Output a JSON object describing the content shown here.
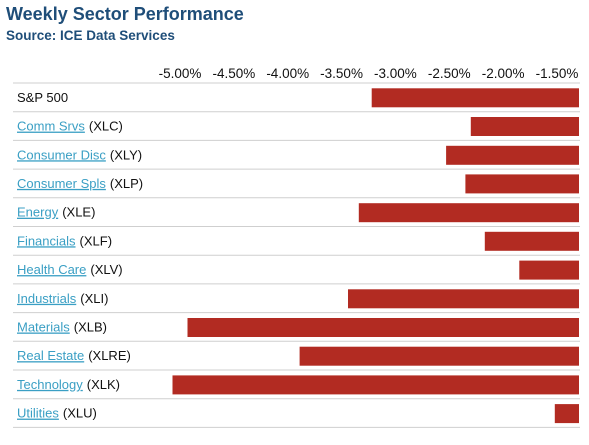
{
  "chart_data": {
    "type": "bar",
    "orientation": "horizontal",
    "title": "Weekly Sector Performance",
    "subtitle": "Source: ICE Data Services",
    "xlim": [
      -5.3,
      -1.35
    ],
    "x_ticks": [
      -5.0,
      -4.5,
      -4.0,
      -3.5,
      -3.0,
      -2.5,
      -2.0,
      -1.5
    ],
    "x_tick_labels": [
      "-5.00%",
      "-4.50%",
      "-4.00%",
      "-3.50%",
      "-3.00%",
      "-2.50%",
      "-2.00%",
      "-1.50%"
    ],
    "axis_position": "top",
    "bar_color": "#b22b22",
    "link_color": "#3a9fc4",
    "title_color": "#1f4e79",
    "rows": [
      {
        "label": "S&P 500",
        "ticker": "",
        "linked": false,
        "value": -3.22
      },
      {
        "label": "Comm Srvs",
        "ticker": "(XLC)",
        "linked": true,
        "value": -2.3
      },
      {
        "label": "Consumer Disc",
        "ticker": "(XLY)",
        "linked": true,
        "value": -2.53
      },
      {
        "label": "Consumer Spls",
        "ticker": "(XLP)",
        "linked": true,
        "value": -2.35
      },
      {
        "label": "Energy",
        "ticker": "(XLE)",
        "linked": true,
        "value": -3.34
      },
      {
        "label": "Financials",
        "ticker": "(XLF)",
        "linked": true,
        "value": -2.17
      },
      {
        "label": "Health Care",
        "ticker": "(XLV)",
        "linked": true,
        "value": -1.85
      },
      {
        "label": "Industrials",
        "ticker": "(XLI)",
        "linked": true,
        "value": -3.44
      },
      {
        "label": "Materials",
        "ticker": "(XLB)",
        "linked": true,
        "value": -4.93
      },
      {
        "label": "Real Estate",
        "ticker": "(XLRE)",
        "linked": true,
        "value": -3.89
      },
      {
        "label": "Technology",
        "ticker": "(XLK)",
        "linked": true,
        "value": -5.07
      },
      {
        "label": "Utilities",
        "ticker": "(XLU)",
        "linked": true,
        "value": -1.52
      }
    ]
  }
}
